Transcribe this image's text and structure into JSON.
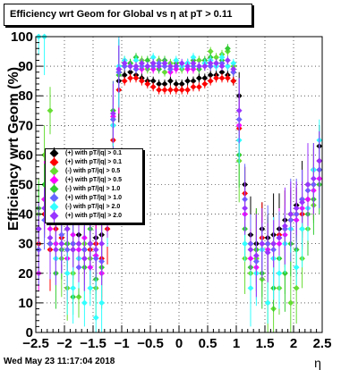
{
  "title": "Efficiency wrt Geom for Global vs   η at pT > 0.11",
  "footer": "Wed May 23 11:17:04 2018",
  "chart_data": {
    "type": "scatter",
    "xlabel": "η",
    "ylabel": "Efficiency wrt Geom (%)",
    "xlim": [
      -2.5,
      2.5
    ],
    "ylim": [
      0,
      100
    ],
    "x_ticks": [
      "−2.5",
      "−2",
      "−1.5",
      "−1",
      "−0.5",
      "0",
      "0.5",
      "1",
      "1.5",
      "2",
      "2.5"
    ],
    "y_ticks": [
      "0",
      "10",
      "20",
      "30",
      "40",
      "50",
      "60",
      "70",
      "80",
      "90",
      "100"
    ],
    "grid": true,
    "legend_position": "left-middle",
    "series": [
      {
        "name": "(+) with pT/|q| > 0.1",
        "color": "#000000",
        "x": [
          -2.45,
          -2.35,
          -2.25,
          -2.15,
          -2.05,
          -1.95,
          -1.85,
          -1.75,
          -1.65,
          -1.55,
          -1.45,
          -1.35,
          -1.25,
          -1.15,
          -1.05,
          -0.95,
          -0.85,
          -0.75,
          -0.65,
          -0.55,
          -0.45,
          -0.35,
          -0.25,
          -0.15,
          -0.05,
          0.05,
          0.15,
          0.25,
          0.35,
          0.45,
          0.55,
          0.65,
          0.75,
          0.85,
          0.95,
          1.05,
          1.15,
          1.25,
          1.35,
          1.45,
          1.55,
          1.65,
          1.75,
          1.85,
          1.95,
          2.05,
          2.15,
          2.25,
          2.35,
          2.45
        ],
        "y": [
          35,
          45,
          30,
          40,
          38,
          35,
          30,
          33,
          28,
          30,
          32,
          33,
          40,
          70,
          85,
          87,
          88,
          87,
          86,
          85,
          85,
          84,
          84,
          85,
          84,
          84,
          85,
          85,
          86,
          86,
          87,
          87,
          88,
          87,
          85,
          80,
          50,
          33,
          30,
          35,
          32,
          33,
          35,
          38,
          40,
          43,
          45,
          50,
          55,
          63
        ]
      },
      {
        "name": "(+) with pT/|q| > 0.1",
        "color": "#ff0000",
        "x": [
          -2.45,
          -2.35,
          -2.25,
          -2.15,
          -2.05,
          -1.95,
          -1.85,
          -1.75,
          -1.65,
          -1.55,
          -1.45,
          -1.35,
          -1.25,
          -1.15,
          -1.05,
          -0.95,
          -0.85,
          -0.75,
          -0.65,
          -0.55,
          -0.45,
          -0.35,
          -0.25,
          -0.15,
          -0.05,
          0.05,
          0.15,
          0.25,
          0.35,
          0.45,
          0.55,
          0.65,
          0.75,
          0.85,
          0.95,
          1.05,
          1.15,
          1.25,
          1.35,
          1.45,
          1.55,
          1.65,
          1.75,
          1.85,
          1.95,
          2.05,
          2.15,
          2.25,
          2.35,
          2.45
        ],
        "y": [
          30,
          40,
          28,
          35,
          32,
          30,
          28,
          30,
          25,
          28,
          30,
          25,
          35,
          65,
          82,
          85,
          86,
          86,
          85,
          84,
          83,
          82,
          82,
          82,
          82,
          82,
          82,
          83,
          83,
          84,
          85,
          86,
          86,
          86,
          85,
          69,
          47,
          30,
          28,
          32,
          30,
          30,
          33,
          35,
          38,
          40,
          40,
          45,
          50,
          58
        ]
      },
      {
        "name": "(-) with pT/|q| > 0.5",
        "color": "#66dd33",
        "x": [
          -2.45,
          -2.35,
          -2.25,
          -2.15,
          -2.05,
          -1.95,
          -1.85,
          -1.75,
          -1.65,
          -1.55,
          -1.45,
          -1.35,
          -1.25,
          -1.15,
          -1.05,
          -0.95,
          -0.85,
          -0.75,
          -0.65,
          -0.55,
          -0.45,
          -0.35,
          -0.25,
          -0.15,
          -0.05,
          0.05,
          0.15,
          0.25,
          0.35,
          0.45,
          0.55,
          0.65,
          0.75,
          0.85,
          0.95,
          1.05,
          1.15,
          1.25,
          1.35,
          1.45,
          1.55,
          1.65,
          1.75,
          1.85,
          1.95,
          2.05,
          2.15,
          2.25,
          2.35,
          2.45
        ],
        "y": [
          40,
          60,
          75,
          45,
          25,
          15,
          20,
          12,
          30,
          25,
          15,
          20,
          48,
          72,
          88,
          92,
          91,
          90,
          92,
          89,
          90,
          92,
          88,
          91,
          90,
          89,
          91,
          90,
          92,
          90,
          95,
          93,
          94,
          95,
          90,
          58,
          25,
          20,
          25,
          18,
          10,
          8,
          15,
          20,
          10,
          15,
          25,
          35,
          43,
          55
        ]
      },
      {
        "name": "(+) with pT/|q| > 0.5",
        "color": "#ff00ff",
        "x": [
          -2.45,
          -2.35,
          -2.25,
          -2.15,
          -2.05,
          -1.95,
          -1.85,
          -1.75,
          -1.65,
          -1.55,
          -1.45,
          -1.35,
          -1.25,
          -1.15,
          -1.05,
          -0.95,
          -0.85,
          -0.75,
          -0.65,
          -0.55,
          -0.45,
          -0.35,
          -0.25,
          -0.15,
          -0.05,
          0.05,
          0.15,
          0.25,
          0.35,
          0.45,
          0.55,
          0.65,
          0.75,
          0.85,
          0.95,
          1.05,
          1.15,
          1.25,
          1.35,
          1.45,
          1.55,
          1.65,
          1.75,
          1.85,
          1.95,
          2.05,
          2.15,
          2.25,
          2.35,
          2.45
        ],
        "y": [
          20,
          45,
          35,
          30,
          28,
          25,
          33,
          28,
          32,
          22,
          26,
          20,
          45,
          73,
          88,
          90,
          90,
          89,
          89,
          90,
          89,
          90,
          90,
          88,
          89,
          90,
          89,
          89,
          90,
          90,
          90,
          90,
          91,
          90,
          88,
          70,
          40,
          25,
          22,
          30,
          28,
          25,
          30,
          33,
          35,
          38,
          42,
          45,
          48,
          52
        ]
      },
      {
        "name": "(-) with pT/|q| > 1.0",
        "color": "#33cc33",
        "x": [
          -2.45,
          -2.35,
          -2.25,
          -2.15,
          -2.05,
          -1.95,
          -1.85,
          -1.75,
          -1.65,
          -1.55,
          -1.45,
          -1.35,
          -1.25,
          -1.15,
          -1.05,
          -0.95,
          -0.85,
          -0.75,
          -0.65,
          -0.55,
          -0.45,
          -0.35,
          -0.25,
          -0.15,
          -0.05,
          0.05,
          0.15,
          0.25,
          0.35,
          0.45,
          0.55,
          0.65,
          0.75,
          0.85,
          0.95,
          1.05,
          1.15,
          1.25,
          1.35,
          1.45,
          1.55,
          1.65,
          1.75,
          1.85,
          1.95,
          2.05,
          2.15,
          2.25,
          2.35,
          2.45
        ],
        "y": [
          42,
          50,
          38,
          20,
          28,
          30,
          12,
          25,
          22,
          35,
          18,
          22,
          47,
          75,
          87,
          90,
          91,
          93,
          90,
          92,
          91,
          89,
          92,
          90,
          91,
          90,
          91,
          92,
          89,
          92,
          93,
          91,
          92,
          96,
          88,
          60,
          35,
          22,
          28,
          20,
          30,
          15,
          25,
          20,
          30,
          28,
          35,
          40,
          45,
          50
        ]
      },
      {
        "name": "(+) with pT/|q| > 1.0",
        "color": "#6666ff",
        "x": [
          -2.45,
          -2.35,
          -2.25,
          -2.15,
          -2.05,
          -1.95,
          -1.85,
          -1.75,
          -1.65,
          -1.55,
          -1.45,
          -1.35,
          -1.25,
          -1.15,
          -1.05,
          -0.95,
          -0.85,
          -0.75,
          -0.65,
          -0.55,
          -0.45,
          -0.35,
          -0.25,
          -0.15,
          -0.05,
          0.05,
          0.15,
          0.25,
          0.35,
          0.45,
          0.55,
          0.65,
          0.75,
          0.85,
          0.95,
          1.05,
          1.15,
          1.25,
          1.35,
          1.45,
          1.55,
          1.65,
          1.75,
          1.85,
          1.95,
          2.05,
          2.15,
          2.25,
          2.35,
          2.45
        ],
        "y": [
          28,
          38,
          30,
          25,
          33,
          28,
          30,
          22,
          28,
          30,
          25,
          24,
          42,
          72,
          88,
          90,
          90,
          89,
          90,
          90,
          90,
          91,
          90,
          89,
          90,
          90,
          91,
          90,
          90,
          91,
          90,
          90,
          91,
          90,
          88,
          72,
          45,
          30,
          24,
          28,
          30,
          28,
          32,
          35,
          38,
          40,
          45,
          48,
          50,
          55
        ]
      },
      {
        "name": "(-) with pT/|q| > 2.0",
        "color": "#33ffff",
        "x": [
          -2.45,
          -2.35,
          -2.25,
          -2.15,
          -2.05,
          -1.95,
          -1.85,
          -1.75,
          -1.65,
          -1.55,
          -1.45,
          -1.35,
          -1.25,
          -1.15,
          -1.05,
          -0.95,
          -0.85,
          -0.75,
          -0.65,
          -0.55,
          -0.45,
          -0.35,
          -0.25,
          -0.15,
          -0.05,
          0.05,
          0.15,
          0.25,
          0.35,
          0.45,
          0.55,
          0.65,
          0.75,
          0.85,
          0.95,
          1.05,
          1.15,
          1.25,
          1.35,
          1.45,
          1.55,
          1.65,
          1.75,
          1.85,
          1.95,
          2.05,
          2.15,
          2.25,
          2.35,
          2.45
        ],
        "y": [
          100,
          100,
          40,
          25,
          30,
          20,
          15,
          25,
          10,
          15,
          5,
          10,
          38,
          70,
          90,
          92,
          90,
          92,
          91,
          90,
          93,
          90,
          91,
          90,
          92,
          90,
          91,
          93,
          90,
          91,
          92,
          90,
          93,
          90,
          91,
          65,
          30,
          15,
          20,
          28,
          10,
          25,
          20,
          30,
          35,
          22,
          35,
          42,
          55,
          65
        ]
      },
      {
        "name": "(+) with pT/|q| > 2.0",
        "color": "#9933ff",
        "x": [
          -2.45,
          -2.35,
          -2.25,
          -2.15,
          -2.05,
          -1.95,
          -1.85,
          -1.75,
          -1.65,
          -1.55,
          -1.45,
          -1.35,
          -1.25,
          -1.15,
          -1.05,
          -0.95,
          -0.85,
          -0.75,
          -0.65,
          -0.55,
          -0.45,
          -0.35,
          -0.25,
          -0.15,
          -0.05,
          0.05,
          0.15,
          0.25,
          0.35,
          0.45,
          0.55,
          0.65,
          0.75,
          0.85,
          0.95,
          1.05,
          1.15,
          1.25,
          1.35,
          1.45,
          1.55,
          1.65,
          1.75,
          1.85,
          1.95,
          2.05,
          2.15,
          2.25,
          2.35,
          2.45
        ],
        "y": [
          35,
          42,
          32,
          28,
          30,
          35,
          28,
          30,
          25,
          30,
          28,
          30,
          44,
          74,
          89,
          91,
          90,
          90,
          91,
          90,
          91,
          90,
          91,
          90,
          90,
          91,
          90,
          91,
          90,
          90,
          91,
          91,
          90,
          92,
          89,
          75,
          42,
          28,
          26,
          30,
          27,
          30,
          32,
          36,
          40,
          42,
          44,
          50,
          52,
          58
        ]
      }
    ]
  }
}
